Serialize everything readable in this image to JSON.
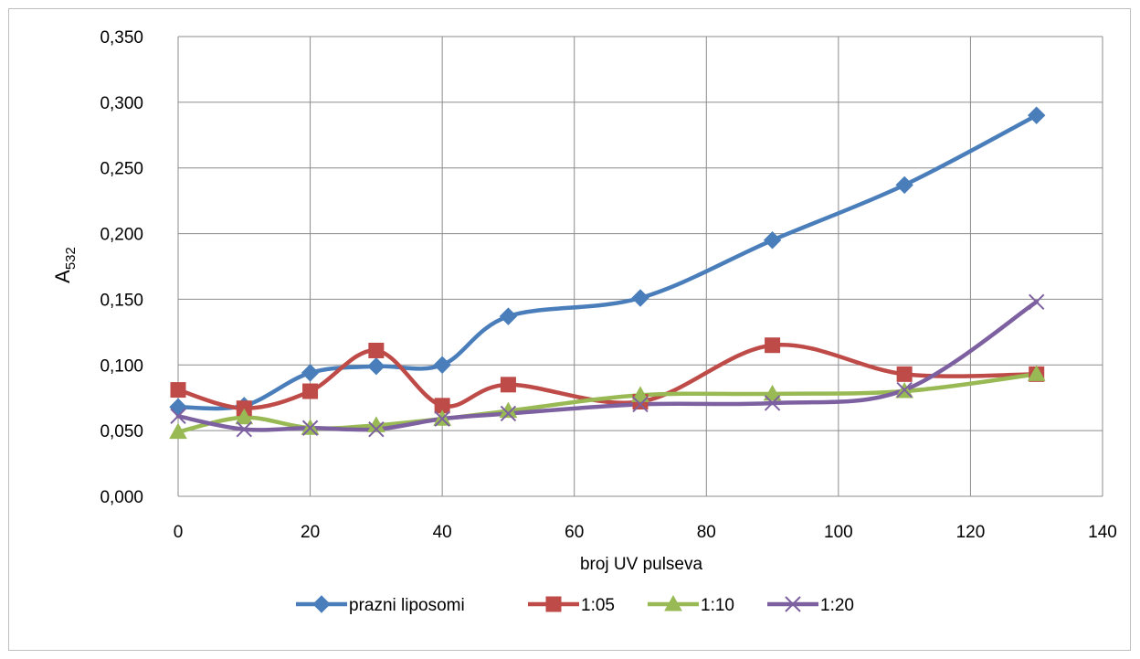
{
  "chart_data": {
    "type": "line",
    "title": "",
    "xlabel": "broj UV pulseva",
    "ylabel_main": "A",
    "ylabel_sub": "532",
    "xlim": [
      0,
      140
    ],
    "ylim": [
      0,
      0.35
    ],
    "x_ticks": [
      0,
      20,
      40,
      60,
      80,
      100,
      120,
      140
    ],
    "x_tick_labels": [
      "0",
      "20",
      "40",
      "60",
      "80",
      "100",
      "120",
      "140"
    ],
    "y_ticks": [
      0,
      0.05,
      0.1,
      0.15,
      0.2,
      0.25,
      0.3,
      0.35
    ],
    "y_tick_labels": [
      "0,000",
      "0,050",
      "0,100",
      "0,150",
      "0,200",
      "0,250",
      "0,300",
      "0,350"
    ],
    "grid": true,
    "smooth": true,
    "legend_position": "bottom",
    "x": [
      0,
      10,
      20,
      30,
      40,
      50,
      70,
      90,
      110,
      130
    ],
    "series": [
      {
        "name": "prazni liposomi",
        "color": "#4a7ebb",
        "marker": "diamond",
        "values": [
          0.068,
          0.069,
          0.094,
          0.099,
          0.1,
          0.137,
          0.151,
          0.195,
          0.237,
          0.29
        ]
      },
      {
        "name": "1:05",
        "color": "#be4b48",
        "marker": "square",
        "values": [
          0.081,
          0.067,
          0.08,
          0.111,
          0.069,
          0.085,
          0.072,
          0.115,
          0.093,
          0.093
        ]
      },
      {
        "name": "1:10",
        "color": "#98b954",
        "marker": "triangle",
        "values": [
          0.049,
          0.06,
          0.052,
          0.054,
          0.059,
          0.065,
          0.077,
          0.078,
          0.08,
          0.093
        ]
      },
      {
        "name": "1:20",
        "color": "#7d60a0",
        "marker": "x",
        "values": [
          0.061,
          0.051,
          0.052,
          0.051,
          0.059,
          0.063,
          0.07,
          0.071,
          0.081,
          0.148
        ]
      }
    ]
  }
}
